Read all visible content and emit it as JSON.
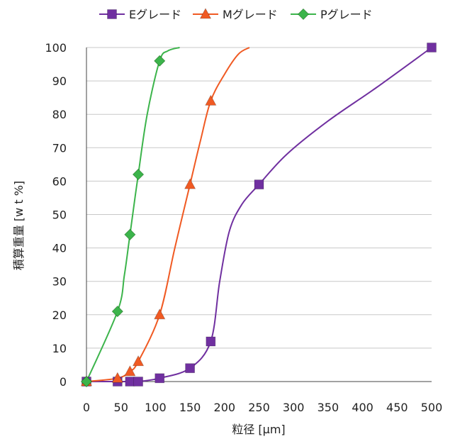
{
  "chart_data": {
    "type": "line",
    "xlabel": "粒径 [μm]",
    "ylabel": "積算重量 [w t %]",
    "xlim": [
      0,
      500
    ],
    "ylim": [
      0,
      100
    ],
    "x_ticks": [
      0,
      50,
      100,
      150,
      200,
      250,
      300,
      350,
      400,
      450,
      500
    ],
    "y_ticks": [
      0,
      10,
      20,
      30,
      40,
      50,
      60,
      70,
      80,
      90,
      100
    ],
    "grid": "horizontal",
    "legend_position": "top",
    "series": [
      {
        "name": "Eグレード",
        "color": "#7030a0",
        "marker": "square",
        "points": [
          [
            0,
            0
          ],
          [
            45,
            0
          ],
          [
            63,
            0
          ],
          [
            75,
            0
          ],
          [
            106,
            1
          ],
          [
            150,
            4
          ],
          [
            180,
            12
          ],
          [
            250,
            59
          ],
          [
            500,
            100
          ]
        ],
        "curve": [
          [
            0,
            0
          ],
          [
            45,
            0
          ],
          [
            63,
            0
          ],
          [
            75,
            0
          ],
          [
            106,
            1
          ],
          [
            150,
            4
          ],
          [
            180,
            12
          ],
          [
            193,
            30
          ],
          [
            207,
            45
          ],
          [
            225,
            53
          ],
          [
            250,
            59
          ],
          [
            290,
            68
          ],
          [
            350,
            78
          ],
          [
            420,
            88
          ],
          [
            500,
            100
          ]
        ]
      },
      {
        "name": "Mグレード",
        "color": "#f05a23",
        "marker": "triangle",
        "points": [
          [
            0,
            0
          ],
          [
            45,
            1
          ],
          [
            63,
            3
          ],
          [
            75,
            6
          ],
          [
            106,
            20
          ],
          [
            150,
            59
          ],
          [
            180,
            84
          ]
        ],
        "curve": [
          [
            0,
            0
          ],
          [
            45,
            1
          ],
          [
            63,
            3
          ],
          [
            75,
            6
          ],
          [
            106,
            20
          ],
          [
            128,
            40
          ],
          [
            150,
            59
          ],
          [
            165,
            72
          ],
          [
            180,
            84
          ],
          [
            200,
            92
          ],
          [
            220,
            98
          ],
          [
            236,
            100
          ]
        ]
      },
      {
        "name": "Pグレード",
        "color": "#3cb44b",
        "marker": "diamond",
        "points": [
          [
            0,
            0
          ],
          [
            45,
            21
          ],
          [
            63,
            44
          ],
          [
            75,
            62
          ],
          [
            106,
            96
          ]
        ],
        "curve": [
          [
            0,
            0
          ],
          [
            45,
            21
          ],
          [
            55,
            32
          ],
          [
            63,
            44
          ],
          [
            75,
            62
          ],
          [
            88,
            80
          ],
          [
            106,
            96
          ],
          [
            118,
            99
          ],
          [
            135,
            100
          ]
        ]
      }
    ]
  }
}
